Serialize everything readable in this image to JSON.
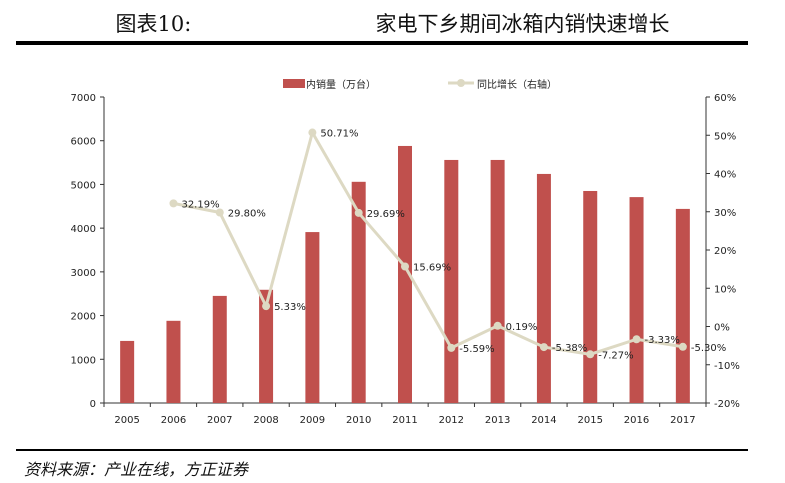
{
  "header": {
    "figure_no": "图表10:",
    "title": "家电下乡期间冰箱内销快速增长"
  },
  "footer": {
    "source": "资料来源：产业在线，方正证券"
  },
  "chart_data": {
    "type": "bar+line",
    "categories": [
      "2005",
      "2006",
      "2007",
      "2008",
      "2009",
      "2010",
      "2011",
      "2012",
      "2013",
      "2014",
      "2015",
      "2016",
      "2017"
    ],
    "series": [
      {
        "name": "内销量（万台）",
        "type": "bar",
        "axis": "left",
        "color": "#c0504d",
        "values": [
          1420,
          1880,
          2450,
          2590,
          3910,
          5060,
          5880,
          5560,
          5560,
          5240,
          4850,
          4710,
          4440
        ]
      },
      {
        "name": "同比增长（右轴）",
        "type": "line",
        "axis": "right",
        "color": "#ddd9c3",
        "values": [
          null,
          32.19,
          29.8,
          5.33,
          50.71,
          29.69,
          15.69,
          -5.59,
          0.19,
          -5.38,
          -7.27,
          -3.33,
          -5.3
        ],
        "labels": [
          "",
          "32.19%",
          "29.80%",
          "5.33%",
          "50.71%",
          "29.69%",
          "15.69%",
          "-5.59%",
          "0.19%",
          "-5.38%",
          "-7.27%",
          "-3.33%",
          "-5.30%"
        ]
      }
    ],
    "y_left": {
      "range": [
        0,
        7000
      ],
      "ticks": [
        "0",
        "1000",
        "2000",
        "3000",
        "4000",
        "5000",
        "6000",
        "7000"
      ]
    },
    "y_right": {
      "range": [
        -20,
        60
      ],
      "ticks": [
        "-20%",
        "-10%",
        "0%",
        "10%",
        "20%",
        "30%",
        "40%",
        "50%",
        "60%"
      ]
    },
    "legend_position": "top",
    "grid": false
  }
}
